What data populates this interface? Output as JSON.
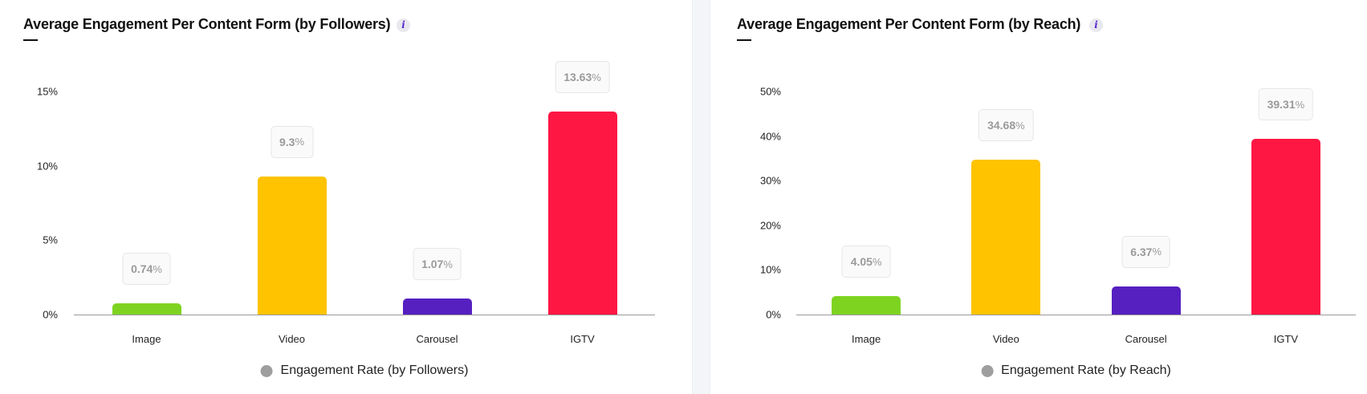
{
  "chart_data": [
    {
      "type": "bar",
      "title": "Average Engagement Per Content Form (by Followers)",
      "categories": [
        "Image",
        "Video",
        "Carousel",
        "IGTV"
      ],
      "values": [
        0.74,
        9.3,
        1.07,
        13.63
      ],
      "value_labels": [
        "0.74",
        "9.3",
        "1.07",
        "13.63"
      ],
      "unit": "%",
      "colors": [
        "#7ed321",
        "#ffc300",
        "#5620c0",
        "#ff1744"
      ],
      "yticks": [
        "0%",
        "5%",
        "10%",
        "15%"
      ],
      "ytick_values": [
        0,
        5,
        10,
        15
      ],
      "ylim": [
        0,
        15
      ],
      "legend": "Engagement Rate (by Followers)",
      "legend_placement": "bottom",
      "grid": false,
      "info_icon": "i"
    },
    {
      "type": "bar",
      "title": "Average Engagement Per Content Form (by Reach)",
      "categories": [
        "Image",
        "Video",
        "Carousel",
        "IGTV"
      ],
      "values": [
        4.05,
        34.68,
        6.37,
        39.31
      ],
      "value_labels": [
        "4.05",
        "34.68",
        "6.37",
        "39.31"
      ],
      "unit": "%",
      "colors": [
        "#7ed321",
        "#ffc300",
        "#5620c0",
        "#ff1744"
      ],
      "yticks": [
        "0%",
        "10%",
        "20%",
        "30%",
        "40%",
        "50%"
      ],
      "ytick_values": [
        0,
        10,
        20,
        30,
        40,
        50
      ],
      "ylim": [
        0,
        50
      ],
      "legend": "Engagement Rate (by Reach)",
      "legend_placement": "bottom",
      "grid": false,
      "info_icon": "i"
    }
  ]
}
